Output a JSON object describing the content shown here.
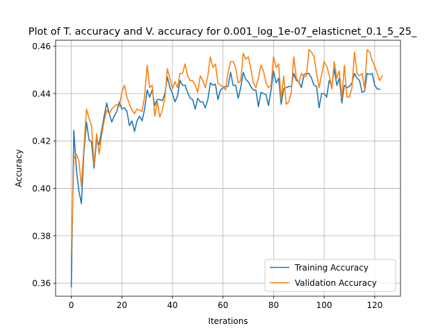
{
  "chart_data": {
    "type": "line",
    "title": "Plot of T. accuracy and V. accuracy for 0.001_log_1e-07_elasticnet_0.1_5_25_",
    "xlabel": "Iterations",
    "ylabel": "Accuracy",
    "xlim": [
      -6.2,
      130.2
    ],
    "ylim": [
      0.3545,
      0.4625
    ],
    "xticks": [
      0,
      20,
      40,
      60,
      80,
      100,
      120
    ],
    "yticks": [
      0.36,
      0.38,
      0.4,
      0.42,
      0.44,
      0.46
    ],
    "ytick_labels": [
      "0.36",
      "0.38",
      "0.40",
      "0.42",
      "0.44",
      "0.46"
    ],
    "grid": true,
    "legend_position": "lower-right",
    "series": [
      {
        "name": "Training Accuracy",
        "color": "#1f77b4",
        "values": [
          0.3585,
          0.4245,
          0.408,
          0.399,
          0.3935,
          0.4155,
          0.428,
          0.4205,
          0.4195,
          0.4085,
          0.4205,
          0.4185,
          0.4245,
          0.4305,
          0.436,
          0.4315,
          0.428,
          0.4305,
          0.4325,
          0.4365,
          0.4335,
          0.434,
          0.4325,
          0.4265,
          0.4285,
          0.424,
          0.4285,
          0.4305,
          0.4285,
          0.4335,
          0.4415,
          0.4385,
          0.4415,
          0.435,
          0.4375,
          0.4375,
          0.437,
          0.44,
          0.447,
          0.4425,
          0.44,
          0.4365,
          0.439,
          0.4455,
          0.4435,
          0.4435,
          0.4405,
          0.438,
          0.4375,
          0.4335,
          0.438,
          0.4365,
          0.4365,
          0.434,
          0.4375,
          0.4445,
          0.4435,
          0.444,
          0.4375,
          0.4415,
          0.4425,
          0.443,
          0.443,
          0.449,
          0.4435,
          0.4435,
          0.438,
          0.4425,
          0.449,
          0.446,
          0.445,
          0.443,
          0.4415,
          0.4415,
          0.4345,
          0.4405,
          0.44,
          0.4395,
          0.435,
          0.4415,
          0.4495,
          0.4445,
          0.4465,
          0.4355,
          0.442,
          0.4425,
          0.443,
          0.443,
          0.4485,
          0.4455,
          0.445,
          0.4425,
          0.448,
          0.4485,
          0.4485,
          0.4465,
          0.4435,
          0.443,
          0.434,
          0.44,
          0.44,
          0.4385,
          0.4455,
          0.443,
          0.4505,
          0.4435,
          0.4465,
          0.436,
          0.4435,
          0.4425,
          0.443,
          0.4445,
          0.4485,
          0.4465,
          0.4455,
          0.4405,
          0.441,
          0.4485,
          0.448,
          0.4485,
          0.4435,
          0.442,
          0.4418
        ],
        "x_start": 0
      },
      {
        "name": "Validation Accuracy",
        "color": "#ff7f0e",
        "values": [
          0.3715,
          0.4125,
          0.4145,
          0.4115,
          0.401,
          0.4175,
          0.4335,
          0.4295,
          0.4265,
          0.41,
          0.423,
          0.4145,
          0.4225,
          0.4285,
          0.433,
          0.4315,
          0.4335,
          0.4345,
          0.4355,
          0.4345,
          0.4405,
          0.4435,
          0.4385,
          0.4355,
          0.433,
          0.4315,
          0.4335,
          0.433,
          0.4325,
          0.439,
          0.452,
          0.4425,
          0.4435,
          0.4305,
          0.4365,
          0.43,
          0.433,
          0.438,
          0.4505,
          0.4465,
          0.442,
          0.445,
          0.4425,
          0.4485,
          0.4485,
          0.4525,
          0.4475,
          0.4455,
          0.4455,
          0.4435,
          0.4405,
          0.4475,
          0.4455,
          0.4425,
          0.4475,
          0.4555,
          0.451,
          0.4525,
          0.4445,
          0.4435,
          0.443,
          0.4415,
          0.449,
          0.4535,
          0.4535,
          0.451,
          0.4445,
          0.4455,
          0.457,
          0.4545,
          0.4555,
          0.4505,
          0.4445,
          0.4425,
          0.4465,
          0.452,
          0.4495,
          0.4445,
          0.4425,
          0.4435,
          0.4555,
          0.451,
          0.4525,
          0.4375,
          0.4475,
          0.4355,
          0.4365,
          0.4405,
          0.4555,
          0.4465,
          0.4445,
          0.4485,
          0.447,
          0.4475,
          0.4585,
          0.4575,
          0.4555,
          0.4485,
          0.4425,
          0.448,
          0.4535,
          0.4515,
          0.448,
          0.442,
          0.4535,
          0.4465,
          0.4495,
          0.438,
          0.452,
          0.4385,
          0.4385,
          0.4425,
          0.4575,
          0.4485,
          0.4475,
          0.4485,
          0.442,
          0.4585,
          0.4575,
          0.454,
          0.4515,
          0.4485,
          0.4455,
          0.4475
        ],
        "x_start": 0
      }
    ]
  }
}
